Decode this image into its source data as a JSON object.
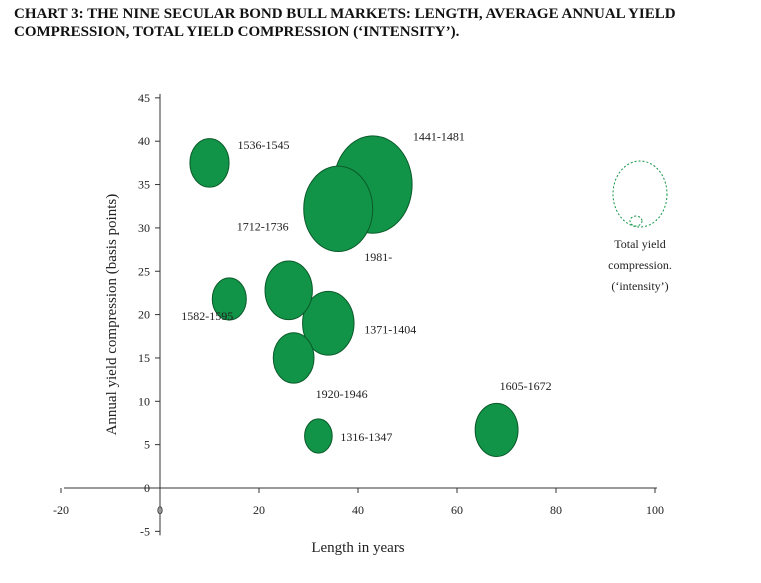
{
  "chart_data": {
    "type": "bubble",
    "title": "CHART 3: THE NINE SECULAR BOND BULL MARKETS: LENGTH, AVERAGE ANNUAL YIELD COMPRESSION, TOTAL YIELD COMPRESSION (‘INTENSITY’).",
    "xlabel": "Length in years",
    "ylabel": "Annual yield compression (basis points)",
    "xlim": [
      -20,
      100
    ],
    "ylim": [
      -5,
      45
    ],
    "x_ticks": [
      "-20",
      "0",
      "20",
      "40",
      "60",
      "80",
      "100"
    ],
    "y_ticks": [
      "-5",
      "0",
      "5",
      "10",
      "15",
      "20",
      "25",
      "30",
      "35",
      "40",
      "45"
    ],
    "grid": false,
    "bubble_color": "#119447",
    "points": [
      {
        "label": "1536-1545",
        "x": 10,
        "y": 37.5,
        "size": 375
      },
      {
        "label": "1582-1595",
        "x": 14,
        "y": 21.8,
        "size": 283
      },
      {
        "label": "1712-1736",
        "x": 26,
        "y": 22.8,
        "size": 547
      },
      {
        "label": "1920-1946",
        "x": 27,
        "y": 15.0,
        "size": 405
      },
      {
        "label": "1371-1404",
        "x": 34,
        "y": 19.0,
        "size": 646
      },
      {
        "label": "1316-1347",
        "x": 32,
        "y": 6.0,
        "size": 186
      },
      {
        "label": "1981-",
        "x": 36,
        "y": 32.2,
        "size": 1159
      },
      {
        "label": "1441-1481",
        "x": 43,
        "y": 35.0,
        "size": 1505
      },
      {
        "label": "1605-1672",
        "x": 68,
        "y": 6.7,
        "size": 449
      }
    ],
    "legend": {
      "text": [
        "Total yield",
        "compression.",
        "(‘intensity’)"
      ],
      "placement": "right"
    }
  }
}
